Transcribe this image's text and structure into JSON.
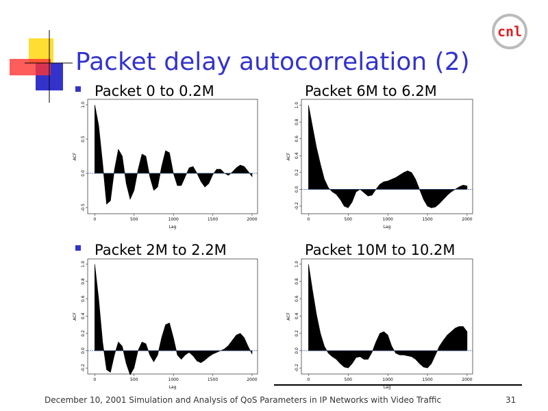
{
  "slide": {
    "title": "Packet delay autocorrelation (2)",
    "footer": "December 10, 2001 Simulation and Analysis of QoS Parameters in IP Networks with Video Traffic",
    "page_number": "31",
    "logo": "cnl"
  },
  "chart_data": [
    {
      "type": "area",
      "title": "Packet 0 to 0.2M",
      "xlabel": "Lag",
      "ylabel": "ACF",
      "color": "#000000",
      "x": [
        0,
        50,
        100,
        150,
        200,
        250,
        300,
        350,
        400,
        450,
        500,
        550,
        600,
        650,
        700,
        750,
        800,
        850,
        900,
        950,
        1000,
        1050,
        1100,
        1150,
        1200,
        1250,
        1300,
        1350,
        1400,
        1450,
        1500,
        1550,
        1600,
        1650,
        1700,
        1750,
        1800,
        1850,
        1900,
        1950,
        2000
      ],
      "values": [
        1.0,
        0.7,
        0.15,
        -0.45,
        -0.4,
        0.05,
        0.35,
        0.25,
        -0.15,
        -0.38,
        -0.25,
        0.05,
        0.28,
        0.25,
        -0.05,
        -0.25,
        -0.2,
        0.1,
        0.33,
        0.3,
        0.0,
        -0.18,
        -0.18,
        -0.05,
        0.08,
        0.1,
        0.0,
        -0.12,
        -0.2,
        -0.15,
        -0.02,
        0.06,
        0.06,
        0.0,
        -0.03,
        0.02,
        0.08,
        0.12,
        0.1,
        0.03,
        -0.05
      ],
      "xlim": [
        -90,
        2070
      ],
      "xticks": [
        0,
        500,
        1000,
        1500,
        2000
      ],
      "ylim": [
        -0.59,
        1.08
      ],
      "yticks": [
        -0.5,
        {
          "value": 0,
          "label": "0.0"
        },
        0.5,
        {
          "value": 1,
          "label": "1.0"
        }
      ]
    },
    {
      "type": "area",
      "title": "Packet 6M to 6.2M",
      "xlabel": "Lag",
      "ylabel": "ACF",
      "color": "#000000",
      "x": [
        0,
        50,
        100,
        150,
        200,
        250,
        300,
        350,
        400,
        450,
        500,
        550,
        600,
        650,
        700,
        750,
        800,
        850,
        900,
        950,
        1000,
        1050,
        1100,
        1150,
        1200,
        1250,
        1300,
        1350,
        1400,
        1450,
        1500,
        1550,
        1600,
        1650,
        1700,
        1750,
        1800,
        1850,
        1900,
        1950,
        2000
      ],
      "values": [
        1.0,
        0.75,
        0.5,
        0.3,
        0.12,
        0.02,
        -0.03,
        -0.06,
        -0.12,
        -0.2,
        -0.22,
        -0.15,
        -0.03,
        0.0,
        -0.04,
        -0.08,
        -0.07,
        0.0,
        0.06,
        0.09,
        0.1,
        0.12,
        0.14,
        0.17,
        0.2,
        0.22,
        0.2,
        0.12,
        0.0,
        -0.12,
        -0.2,
        -0.22,
        -0.21,
        -0.17,
        -0.12,
        -0.07,
        -0.03,
        0.0,
        0.03,
        0.05,
        0.04
      ],
      "xlim": [
        -90,
        2070
      ],
      "xticks": [
        0,
        500,
        1000,
        1500,
        2000
      ],
      "ylim": [
        -0.29,
        1.07
      ],
      "yticks": [
        -0.2,
        {
          "value": 0,
          "label": "0.0"
        },
        0.2,
        0.4,
        0.6,
        0.8,
        {
          "value": 1,
          "label": "1.0"
        }
      ]
    },
    {
      "type": "area",
      "title": "Packet 2M to 2.2M",
      "xlabel": "Lag",
      "ylabel": "ACF",
      "color": "#000000",
      "x": [
        0,
        50,
        100,
        150,
        200,
        250,
        300,
        350,
        400,
        450,
        500,
        550,
        600,
        650,
        700,
        750,
        800,
        850,
        900,
        950,
        1000,
        1050,
        1100,
        1150,
        1200,
        1250,
        1300,
        1350,
        1400,
        1450,
        1500,
        1550,
        1600,
        1650,
        1700,
        1750,
        1800,
        1850,
        1900,
        1950,
        2000
      ],
      "values": [
        1.0,
        0.6,
        0.1,
        -0.22,
        -0.25,
        -0.05,
        0.1,
        0.05,
        -0.15,
        -0.28,
        -0.2,
        0.0,
        0.1,
        0.08,
        -0.05,
        -0.13,
        -0.05,
        0.15,
        0.3,
        0.32,
        0.15,
        -0.05,
        -0.1,
        -0.05,
        -0.02,
        -0.06,
        -0.12,
        -0.14,
        -0.11,
        -0.07,
        -0.04,
        -0.02,
        0.0,
        0.02,
        0.06,
        0.12,
        0.18,
        0.2,
        0.15,
        0.05,
        -0.04
      ],
      "xlim": [
        -90,
        2070
      ],
      "xticks": [
        0,
        500,
        1000,
        1500,
        2000
      ],
      "ylim": [
        -0.27,
        1.06
      ],
      "yticks": [
        -0.2,
        {
          "value": 0,
          "label": "0.0"
        },
        0.2,
        0.4,
        0.6,
        0.8,
        {
          "value": 1,
          "label": "1.0"
        }
      ]
    },
    {
      "type": "area",
      "title": "Packet 10M to 10.2M",
      "xlabel": "Lag",
      "ylabel": "ACF",
      "color": "#000000",
      "x": [
        0,
        50,
        100,
        150,
        200,
        250,
        300,
        350,
        400,
        450,
        500,
        550,
        600,
        650,
        700,
        750,
        800,
        850,
        900,
        950,
        1000,
        1050,
        1100,
        1150,
        1200,
        1250,
        1300,
        1350,
        1400,
        1450,
        1500,
        1550,
        1600,
        1650,
        1700,
        1750,
        1800,
        1850,
        1900,
        1950,
        2000
      ],
      "values": [
        1.0,
        0.7,
        0.42,
        0.2,
        0.05,
        -0.03,
        -0.07,
        -0.1,
        -0.15,
        -0.19,
        -0.2,
        -0.15,
        -0.08,
        -0.07,
        -0.1,
        -0.1,
        -0.02,
        0.1,
        0.2,
        0.22,
        0.18,
        0.05,
        -0.03,
        -0.05,
        -0.05,
        -0.06,
        -0.07,
        -0.1,
        -0.15,
        -0.19,
        -0.2,
        -0.15,
        -0.05,
        0.05,
        0.12,
        0.18,
        0.22,
        0.26,
        0.28,
        0.28,
        0.22
      ],
      "xlim": [
        -90,
        2070
      ],
      "xticks": [
        0,
        500,
        1000,
        1500,
        2000
      ],
      "ylim": [
        -0.27,
        1.06
      ],
      "yticks": [
        -0.2,
        {
          "value": 0,
          "label": "0.0"
        },
        0.2,
        0.4,
        0.6,
        0.8,
        {
          "value": 1,
          "label": "1.0"
        }
      ]
    }
  ]
}
